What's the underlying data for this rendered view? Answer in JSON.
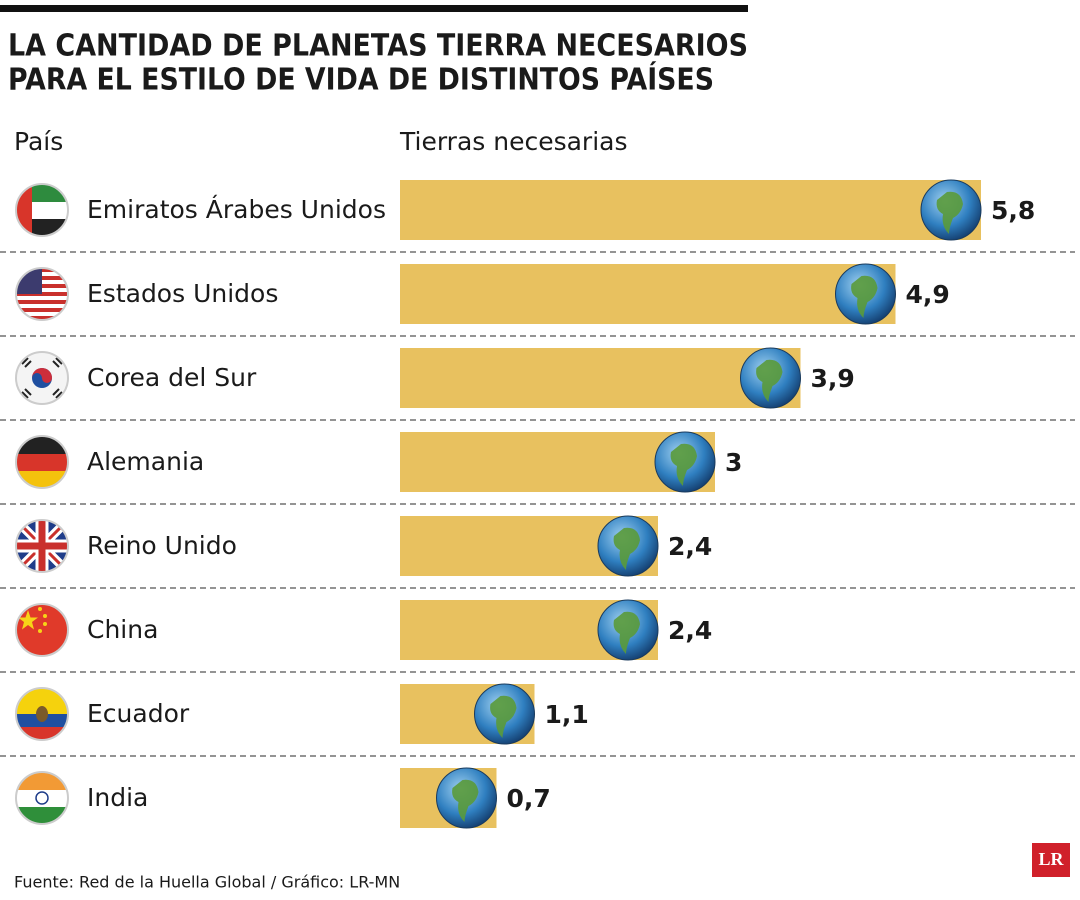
{
  "chart_data": {
    "type": "bar",
    "title": [
      "LA CANTIDAD DE PLANETAS TIERRA NECESARIOS",
      "PARA EL ESTILO DE VIDA DE DISTINTOS PAÍSES"
    ],
    "category_label": "País",
    "value_label": "Tierras necesarias",
    "categories": [
      "Emiratos Árabes Unidos",
      "Estados Unidos",
      "Corea del Sur",
      "Alemania",
      "Reino Unido",
      "China",
      "Ecuador",
      "India"
    ],
    "values": [
      5.8,
      4.9,
      3.9,
      3,
      2.4,
      2.4,
      1.1,
      0.7
    ],
    "value_labels": [
      "5,8",
      "4,9",
      "3,9",
      "3",
      "2,4",
      "2,4",
      "1,1",
      "0,7"
    ],
    "color": "#e8c15f",
    "source": "Fuente: Red de la Huella Global / Gráfico: LR-MN",
    "logo": "LR"
  }
}
